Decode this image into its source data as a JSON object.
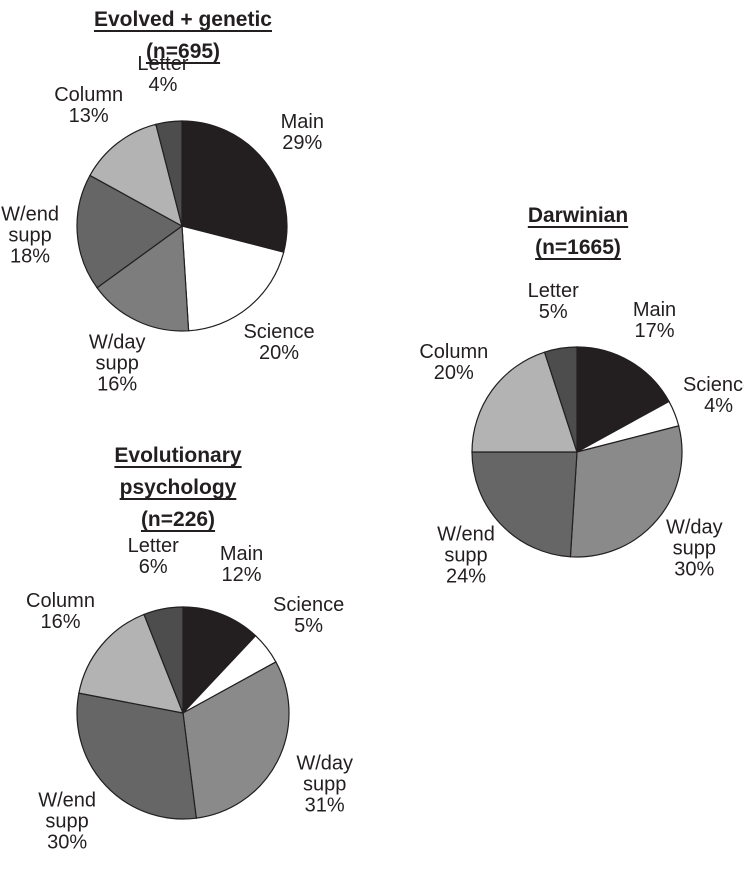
{
  "chart_data": [
    {
      "type": "pie",
      "title": "Evolved + genetic",
      "subtitle": "(n=695)",
      "categories": [
        "Main",
        "Science",
        "W/day supp",
        "W/end supp",
        "Column",
        "Letter"
      ],
      "values": [
        29,
        20,
        16,
        18,
        13,
        4
      ],
      "value_labels": [
        "29%",
        "20%",
        "16%",
        "18%",
        "13%",
        "4%"
      ],
      "colors": [
        "#231f20",
        "#ffffff",
        "#7d7d7d",
        "#666666",
        "#b3b3b3",
        "#4d4d4d"
      ]
    },
    {
      "type": "pie",
      "title": "Darwinian",
      "subtitle": "(n=1665)",
      "categories": [
        "Main",
        "Science",
        "W/day supp",
        "W/end supp",
        "Column",
        "Letter"
      ],
      "values": [
        17,
        4,
        30,
        24,
        20,
        5
      ],
      "value_labels": [
        "17%",
        "4%",
        "30%",
        "24%",
        "20%",
        "5%"
      ],
      "colors": [
        "#231f20",
        "#ffffff",
        "#8a8a8a",
        "#666666",
        "#b3b3b3",
        "#4d4d4d"
      ]
    },
    {
      "type": "pie",
      "title": "Evolutionary psychology",
      "subtitle": "(n=226)",
      "categories": [
        "Main",
        "Science",
        "W/day supp",
        "W/end supp",
        "Column",
        "Letter"
      ],
      "values": [
        12,
        5,
        31,
        30,
        16,
        6
      ],
      "value_labels": [
        "12%",
        "5%",
        "31%",
        "30%",
        "16%",
        "6%"
      ],
      "colors": [
        "#231f20",
        "#ffffff",
        "#8a8a8a",
        "#666666",
        "#b3b3b3",
        "#4d4d4d"
      ]
    }
  ]
}
